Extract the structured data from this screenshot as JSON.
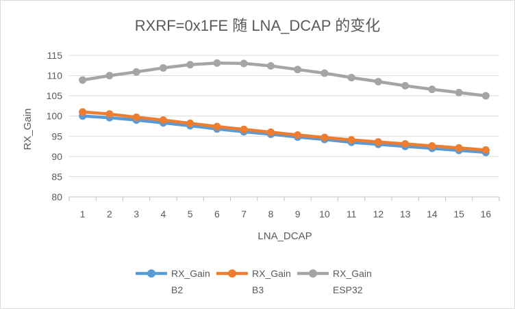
{
  "chart_data": {
    "type": "line",
    "title": "RXRF=0x1FE 随 LNA_DCAP 的变化",
    "xlabel": "LNA_DCAP",
    "ylabel": "RX_Gain",
    "x": [
      1,
      2,
      3,
      4,
      5,
      6,
      7,
      8,
      9,
      10,
      11,
      12,
      13,
      14,
      15,
      16
    ],
    "ylim": [
      80,
      115
    ],
    "yticks": [
      80,
      85,
      90,
      95,
      100,
      105,
      110,
      115
    ],
    "grid": true,
    "legend_position": "bottom",
    "series": [
      {
        "name": "RX_Gain B2",
        "legend_line1": "RX_Gain",
        "legend_line2": "B2",
        "color": "#5b9bd5",
        "values": [
          100.0,
          99.6,
          99.0,
          98.3,
          97.6,
          96.8,
          96.1,
          95.5,
          94.8,
          94.2,
          93.5,
          93.0,
          92.5,
          92.0,
          91.5,
          91.0
        ]
      },
      {
        "name": "RX_Gain B3",
        "legend_line1": "RX_Gain",
        "legend_line2": "B3",
        "color": "#ed7d31",
        "values": [
          101.0,
          100.5,
          99.7,
          99.0,
          98.2,
          97.4,
          96.7,
          96.0,
          95.3,
          94.7,
          94.1,
          93.6,
          93.1,
          92.6,
          92.1,
          91.6
        ]
      },
      {
        "name": "RX_Gain ESP32",
        "legend_line1": "RX_Gain",
        "legend_line2": "ESP32",
        "color": "#a5a5a5",
        "values": [
          108.9,
          110.0,
          110.9,
          111.9,
          112.7,
          113.1,
          113.0,
          112.4,
          111.5,
          110.6,
          109.5,
          108.5,
          107.5,
          106.6,
          105.8,
          105.0
        ]
      }
    ]
  }
}
